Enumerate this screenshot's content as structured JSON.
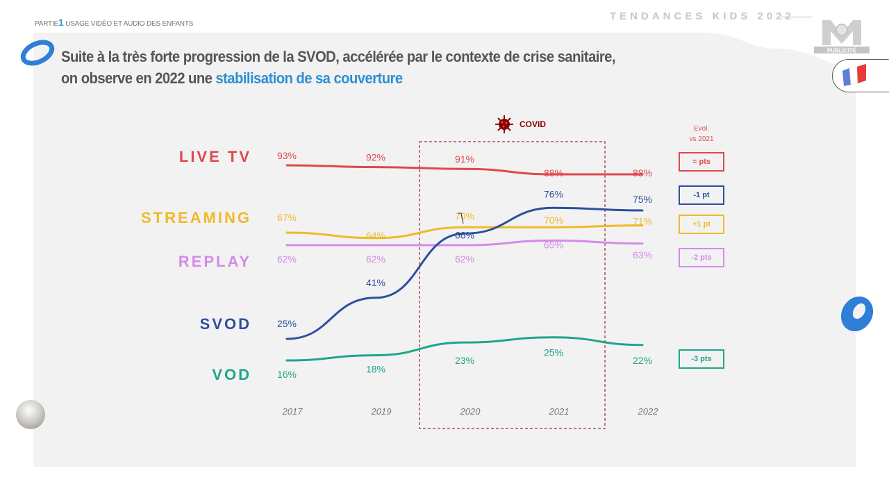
{
  "header": {
    "part_prefix": "PARTIE",
    "part_number": "1",
    "part_title": "USAGE VIDÉO ET AUDIO DES ENFANTS",
    "brand": "TENDANCES KIDS 2022",
    "logo_text": "PUBLICITÉ"
  },
  "title": {
    "line1": "Suite à la très forte progression de la SVOD, accélérée par le contexte de crise sanitaire,",
    "line2_prefix": "on observe en 2022 une ",
    "line2_highlight": "stabilisation de sa couverture"
  },
  "covid": {
    "label": "COVID",
    "start_year": "2020",
    "end_year": "2021"
  },
  "evol": {
    "header_line1": "Evol.",
    "header_line2": "vs 2021"
  },
  "colors": {
    "live_tv": "#e0474c",
    "streaming": "#f0b928",
    "replay": "#d58be8",
    "svod": "#2e4f9e",
    "vod": "#1fa58a",
    "covid": "#8b0000",
    "highlight": "#2f8fd2"
  },
  "chart_data": {
    "type": "line",
    "title": "",
    "xlabel": "",
    "ylabel": "",
    "x": [
      "2017",
      "2019",
      "2020",
      "2021",
      "2022"
    ],
    "ylim": [
      0,
      100
    ],
    "grid": false,
    "annotations": [
      "COVID period 2020-2021 (dashed box)"
    ],
    "series": [
      {
        "key": "live_tv",
        "name": "LIVE TV",
        "values": [
          93,
          92,
          91,
          88,
          88
        ],
        "labels": [
          "93%",
          "92%",
          "91%",
          "88%",
          "88%"
        ],
        "evol": "= pts"
      },
      {
        "key": "streaming",
        "name": "STREAMING",
        "values": [
          67,
          64,
          70,
          70,
          71
        ],
        "labels": [
          "67%",
          "64%",
          "70%",
          "70%",
          "71%"
        ],
        "evol": "+1 pt"
      },
      {
        "key": "replay",
        "name": "REPLAY",
        "values": [
          62,
          62,
          62,
          65,
          63
        ],
        "labels": [
          "62%",
          "62%",
          "62%",
          "65%",
          "63%"
        ],
        "evol": "-2 pts"
      },
      {
        "key": "svod",
        "name": "SVOD",
        "values": [
          25,
          41,
          66,
          76,
          75
        ],
        "labels": [
          "25%",
          "41%",
          "66%",
          "76%",
          "75%"
        ],
        "evol": "-1 pt"
      },
      {
        "key": "vod",
        "name": "VOD",
        "values": [
          16,
          18,
          23,
          25,
          22
        ],
        "labels": [
          "16%",
          "18%",
          "23%",
          "25%",
          "22%"
        ],
        "evol": "-3 pts"
      }
    ]
  }
}
